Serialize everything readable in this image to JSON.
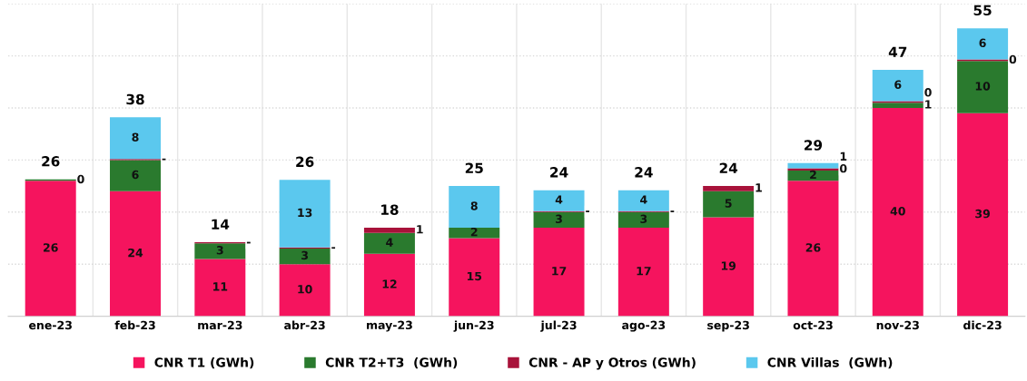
{
  "chart_data": {
    "type": "bar",
    "stacked": true,
    "categories": [
      "ene-23",
      "feb-23",
      "mar-23",
      "abr-23",
      "may-23",
      "jun-23",
      "jul-23",
      "ago-23",
      "sep-23",
      "oct-23",
      "nov-23",
      "dic-23"
    ],
    "series": [
      {
        "name": "CNR T1 (GWh)",
        "color": "#f5145e",
        "values": [
          26,
          24,
          11,
          10,
          12,
          15,
          17,
          17,
          19,
          26,
          40,
          39
        ],
        "value_labels": [
          "26",
          "24",
          "11",
          "10",
          "12",
          "15",
          "17",
          "17",
          "19",
          "26",
          "40",
          "39"
        ]
      },
      {
        "name": "CNR T2+T3  (GWh)",
        "color": "#2a7a2e",
        "values": [
          0.3,
          6,
          3,
          3,
          4,
          2,
          3,
          3,
          5,
          2,
          1,
          10
        ],
        "value_labels": [
          "0",
          "6",
          "3",
          "3",
          "4",
          "2",
          "3",
          "3",
          "5",
          "2",
          "1",
          "10"
        ]
      },
      {
        "name": "CNR - AP y Otros (GWh)",
        "color": "#a8123a",
        "values": [
          0,
          0.2,
          0.2,
          0.2,
          1,
          0,
          0.2,
          0.2,
          1,
          0.4,
          0.3,
          0.3
        ],
        "value_labels": [
          null,
          "-",
          "-",
          "-",
          "1",
          null,
          "-",
          "-",
          "1",
          "0",
          "0",
          "0"
        ]
      },
      {
        "name": "CNR Villas  (GWh)",
        "color": "#5bc8ee",
        "values": [
          0,
          8,
          0,
          13,
          0,
          8,
          4,
          4,
          0,
          1,
          6,
          6
        ],
        "value_labels": [
          null,
          "8",
          null,
          "13",
          null,
          "8",
          "4",
          "4",
          null,
          "1",
          "6",
          "6"
        ]
      }
    ],
    "totals": [
      "26",
      "38",
      "14",
      "26",
      "18",
      "25",
      "24",
      "24",
      "24",
      "29",
      "47",
      "55"
    ],
    "ylim": [
      0,
      60
    ],
    "yticks": [
      {
        "value": 0,
        "label": null
      },
      {
        "value": 10,
        "label": null
      },
      {
        "value": 20,
        "label": null
      },
      {
        "value": 30,
        "label": null
      },
      {
        "value": 40,
        "label": null
      },
      {
        "value": 50,
        "label": null
      },
      {
        "value": 60,
        "label": null
      }
    ],
    "tick_labels": "x",
    "grid": true,
    "legend": "bottom"
  }
}
